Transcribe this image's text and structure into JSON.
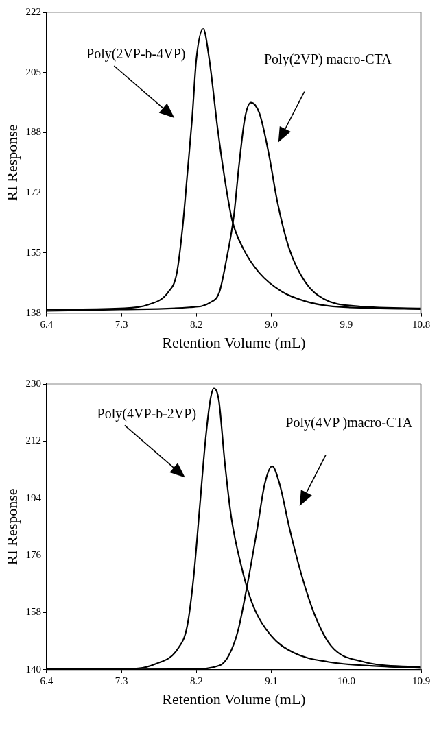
{
  "chart_data": [
    {
      "type": "line",
      "xlabel": "Retention Volume (mL)",
      "ylabel": "RI Response",
      "xlim": [
        6.4,
        10.8
      ],
      "xticks": [
        6.4,
        {
          "value": 7.28,
          "label": "7.3"
        },
        {
          "value": 8.16,
          "label": "8.2"
        },
        {
          "value": 9.04,
          "label": "9.0"
        },
        {
          "value": 9.92,
          "label": "9.9"
        },
        10.8
      ],
      "ylim": [
        138,
        222
      ],
      "yticks": [
        138,
        {
          "value": 154.8,
          "label": "155"
        },
        {
          "value": 171.6,
          "label": "172"
        },
        {
          "value": 188.4,
          "label": "188"
        },
        {
          "value": 205.2,
          "label": "205"
        },
        222
      ],
      "grid": false,
      "legend": false,
      "marker": "none",
      "line_style": "solid",
      "series": [
        {
          "name": "Poly(2VP-b-4VP)",
          "color": "#000000",
          "x": [
            6.4,
            7.26,
            7.59,
            7.83,
            7.93,
            8.0,
            8.05,
            8.11,
            8.16,
            8.24,
            8.31,
            8.41,
            8.49,
            8.58,
            8.71,
            8.9,
            9.17,
            9.44,
            9.71,
            10.2,
            10.8
          ],
          "values": [
            139.0,
            139.3,
            140.3,
            143.9,
            149.2,
            162.5,
            175.9,
            192.5,
            209.1,
            217.4,
            209.1,
            189.4,
            175.9,
            163.9,
            156.0,
            149.2,
            143.9,
            141.3,
            140.0,
            139.4,
            139.1
          ]
        },
        {
          "name": "Poly(2VP) macro-CTA",
          "color": "#000000",
          "x": [
            6.4,
            7.26,
            8.08,
            8.32,
            8.43,
            8.51,
            8.6,
            8.66,
            8.73,
            8.8,
            8.9,
            9.01,
            9.11,
            9.25,
            9.44,
            9.66,
            10.0,
            10.8
          ],
          "values": [
            138.6,
            139.0,
            139.6,
            140.9,
            143.9,
            152.6,
            165.2,
            179.2,
            192.5,
            196.8,
            193.8,
            182.5,
            169.2,
            156.0,
            146.6,
            141.9,
            140.0,
            139.3
          ]
        }
      ]
    },
    {
      "type": "line",
      "xlabel": "Retention Volume (mL)",
      "ylabel": "RI Response",
      "xlim": [
        6.4,
        10.9
      ],
      "xticks": [
        6.4,
        7.3,
        8.2,
        9.1,
        {
          "value": 10.0,
          "label": "10.0"
        },
        10.9
      ],
      "ylim": [
        140,
        230
      ],
      "yticks": [
        140,
        158,
        176,
        194,
        212,
        230
      ],
      "grid": false,
      "legend": false,
      "marker": "none",
      "line_style": "solid",
      "series": [
        {
          "name": "Poly(4VP-b-2VP)",
          "color": "#000000",
          "x": [
            6.4,
            7.3,
            7.7,
            7.98,
            8.09,
            8.17,
            8.24,
            8.31,
            8.37,
            8.41,
            8.47,
            8.54,
            8.62,
            8.73,
            8.87,
            9.09,
            9.37,
            9.79,
            10.3,
            10.9
          ],
          "values": [
            140.2,
            140.1,
            141.7,
            146.7,
            153.8,
            170.1,
            191.3,
            212.6,
            225.4,
            228.6,
            224.7,
            205.5,
            187.8,
            173.6,
            160.9,
            150.9,
            145.3,
            142.4,
            141.2,
            140.5
          ]
        },
        {
          "name": "Poly(4VP )macro-CTA",
          "color": "#000000",
          "x": [
            6.4,
            8.12,
            8.48,
            8.59,
            8.7,
            8.81,
            8.93,
            9.02,
            9.11,
            9.2,
            9.32,
            9.46,
            9.62,
            9.82,
            10.2,
            10.9
          ],
          "values": [
            140.0,
            140.1,
            141.3,
            144.5,
            152.3,
            166.5,
            184.3,
            198.4,
            204.1,
            198.4,
            184.3,
            170.1,
            157.3,
            147.4,
            142.5,
            140.7
          ]
        }
      ]
    }
  ]
}
